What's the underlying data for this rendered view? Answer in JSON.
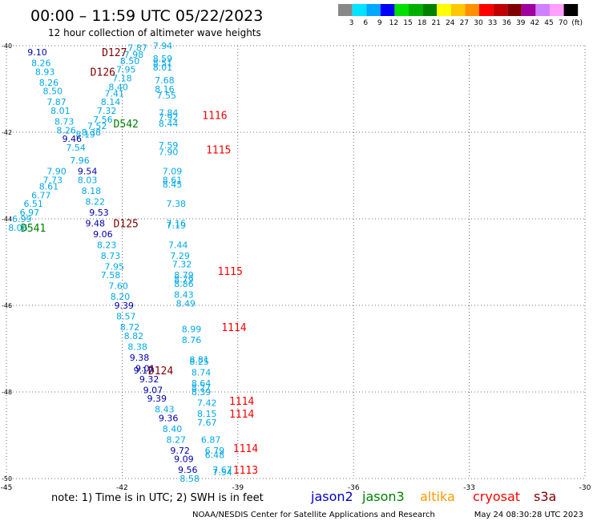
{
  "header": {
    "title": "00:00 – 11:59 UTC 05/22/2023",
    "subtitle": "12 hour collection of altimeter wave heights"
  },
  "legend_scale": {
    "colors": [
      "#888888",
      "#00e5ff",
      "#00a8ff",
      "#0000ff",
      "#00e000",
      "#00b000",
      "#008000",
      "#ffff00",
      "#ffc800",
      "#ff9000",
      "#ff0000",
      "#c00000",
      "#800000",
      "#a000a0",
      "#d080ff",
      "#ffa0ff",
      "#000000"
    ],
    "labels": [
      "3",
      "6",
      "9",
      "12",
      "15",
      "18",
      "21",
      "24",
      "27",
      "30",
      "33",
      "36",
      "39",
      "42",
      "45",
      "70",
      "(ft)"
    ]
  },
  "footer": {
    "note": "note: 1) Time is in UTC; 2) SWH is in feet",
    "credit": "NOAA/NESDIS Center for Satellite Applications and Research",
    "timestamp": "May 24 08:30:28 UTC 2023"
  },
  "satellites": [
    {
      "name": "jason2",
      "color": "#0000cc"
    },
    {
      "name": "jason3",
      "color": "#008000"
    },
    {
      "name": "altika",
      "color": "#ff9900"
    },
    {
      "name": "cryosat",
      "color": "#ff0000"
    },
    {
      "name": "s3a",
      "color": "#800000"
    }
  ],
  "chart_data": {
    "type": "scatter",
    "title": "00:00 – 11:59 UTC 05/22/2023",
    "subtitle": "12 hour collection of altimeter wave heights",
    "xlabel": "",
    "ylabel": "",
    "xlim": [
      -45,
      -30
    ],
    "ylim": [
      -50,
      -40
    ],
    "x_ticks": [
      -45,
      -42,
      -39,
      -36,
      -33,
      -30
    ],
    "y_ticks": [
      -40,
      -42,
      -44,
      -46,
      -48,
      -50
    ],
    "grid": true,
    "colors": {
      "light": "#00a8e8",
      "dark": "#0000aa"
    },
    "labels": [
      {
        "text": "D127",
        "x": -42.2,
        "y": -40.15,
        "sat": "s3a"
      },
      {
        "text": "D126",
        "x": -42.5,
        "y": -40.6,
        "sat": "s3a"
      },
      {
        "text": "D542",
        "x": -41.9,
        "y": -41.8,
        "sat": "jason3"
      },
      {
        "text": "1116",
        "x": -39.6,
        "y": -41.6,
        "sat": "cryosat"
      },
      {
        "text": "1115",
        "x": -39.5,
        "y": -42.4,
        "sat": "cryosat"
      },
      {
        "text": "D541",
        "x": -44.3,
        "y": -44.2,
        "sat": "jason3"
      },
      {
        "text": "D125",
        "x": -41.9,
        "y": -44.1,
        "sat": "s3a"
      },
      {
        "text": "1115",
        "x": -39.2,
        "y": -45.2,
        "sat": "cryosat"
      },
      {
        "text": "1114",
        "x": -39.1,
        "y": -46.5,
        "sat": "cryosat"
      },
      {
        "text": "D124",
        "x": -41.0,
        "y": -47.5,
        "sat": "s3a"
      },
      {
        "text": "1114",
        "x": -38.9,
        "y": -48.2,
        "sat": "cryosat"
      },
      {
        "text": "1114",
        "x": -38.9,
        "y": -48.5,
        "sat": "cryosat"
      },
      {
        "text": "1114",
        "x": -38.8,
        "y": -49.3,
        "sat": "cryosat"
      },
      {
        "text": "1113",
        "x": -38.8,
        "y": -49.8,
        "sat": "cryosat"
      }
    ],
    "points": [
      {
        "v": "9.10",
        "x": -44.2,
        "y": -40.15,
        "c": "dark"
      },
      {
        "v": "8.26",
        "x": -44.1,
        "y": -40.4,
        "c": "light"
      },
      {
        "v": "8.93",
        "x": -44.0,
        "y": -40.6,
        "c": "light"
      },
      {
        "v": "8.26",
        "x": -43.9,
        "y": -40.85,
        "c": "light"
      },
      {
        "v": "8.50",
        "x": -43.8,
        "y": -41.05,
        "c": "light"
      },
      {
        "v": "7.87",
        "x": -43.7,
        "y": -41.3,
        "c": "light"
      },
      {
        "v": "8.01",
        "x": -43.6,
        "y": -41.5,
        "c": "light"
      },
      {
        "v": "8.73",
        "x": -43.5,
        "y": -41.75,
        "c": "light"
      },
      {
        "v": "8.26",
        "x": -43.45,
        "y": -41.95,
        "c": "light"
      },
      {
        "v": "8.19",
        "x": -42.95,
        "y": -42.05,
        "c": "light"
      },
      {
        "v": "9.46",
        "x": -43.3,
        "y": -42.15,
        "c": "dark"
      },
      {
        "v": "7.54",
        "x": -43.2,
        "y": -42.35,
        "c": "light"
      },
      {
        "v": "7.96",
        "x": -43.1,
        "y": -42.65,
        "c": "light"
      },
      {
        "v": "7.90",
        "x": -43.7,
        "y": -42.9,
        "c": "light"
      },
      {
        "v": "9.54",
        "x": -42.9,
        "y": -42.9,
        "c": "dark"
      },
      {
        "v": "7.73",
        "x": -43.8,
        "y": -43.1,
        "c": "light"
      },
      {
        "v": "8.03",
        "x": -42.9,
        "y": -43.1,
        "c": "light"
      },
      {
        "v": "8.61",
        "x": -43.9,
        "y": -43.25,
        "c": "light"
      },
      {
        "v": "8.18",
        "x": -42.8,
        "y": -43.35,
        "c": "light"
      },
      {
        "v": "6.77",
        "x": -44.1,
        "y": -43.45,
        "c": "light"
      },
      {
        "v": "8.22",
        "x": -42.7,
        "y": -43.6,
        "c": "light"
      },
      {
        "v": "6.51",
        "x": -44.3,
        "y": -43.65,
        "c": "light"
      },
      {
        "v": "6.97",
        "x": -44.4,
        "y": -43.85,
        "c": "light"
      },
      {
        "v": "9.53",
        "x": -42.6,
        "y": -43.85,
        "c": "dark"
      },
      {
        "v": "6.99",
        "x": -44.6,
        "y": -44.0,
        "c": "light"
      },
      {
        "v": "9.48",
        "x": -42.7,
        "y": -44.1,
        "c": "dark"
      },
      {
        "v": "8.06",
        "x": -44.7,
        "y": -44.2,
        "c": "light"
      },
      {
        "v": "9.06",
        "x": -42.5,
        "y": -44.35,
        "c": "dark"
      },
      {
        "v": "8.23",
        "x": -42.4,
        "y": -44.6,
        "c": "light"
      },
      {
        "v": "8.73",
        "x": -42.3,
        "y": -44.85,
        "c": "light"
      },
      {
        "v": "7.95",
        "x": -42.2,
        "y": -45.1,
        "c": "light"
      },
      {
        "v": "7.58",
        "x": -42.3,
        "y": -45.3,
        "c": "light"
      },
      {
        "v": "7.60",
        "x": -42.1,
        "y": -45.55,
        "c": "light"
      },
      {
        "v": "8.20",
        "x": -42.05,
        "y": -45.8,
        "c": "light"
      },
      {
        "v": "9.39",
        "x": -41.95,
        "y": -46.0,
        "c": "dark"
      },
      {
        "v": "8.57",
        "x": -41.9,
        "y": -46.25,
        "c": "light"
      },
      {
        "v": "8.72",
        "x": -41.8,
        "y": -46.5,
        "c": "light"
      },
      {
        "v": "8.82",
        "x": -41.7,
        "y": -46.7,
        "c": "light"
      },
      {
        "v": "8.38",
        "x": -41.6,
        "y": -46.95,
        "c": "light"
      },
      {
        "v": "9.38",
        "x": -41.55,
        "y": -47.2,
        "c": "dark"
      },
      {
        "v": "9.01",
        "x": -41.4,
        "y": -47.45,
        "c": "dark"
      },
      {
        "v": "9.17",
        "x": -41.45,
        "y": -47.5,
        "c": "dark"
      },
      {
        "v": "9.32",
        "x": -41.3,
        "y": -47.7,
        "c": "dark"
      },
      {
        "v": "9.07",
        "x": -41.2,
        "y": -47.95,
        "c": "dark"
      },
      {
        "v": "9.39",
        "x": -41.1,
        "y": -48.15,
        "c": "dark"
      },
      {
        "v": "8.43",
        "x": -40.9,
        "y": -48.4,
        "c": "light"
      },
      {
        "v": "9.36",
        "x": -40.8,
        "y": -48.6,
        "c": "dark"
      },
      {
        "v": "8.40",
        "x": -40.7,
        "y": -48.85,
        "c": "light"
      },
      {
        "v": "8.27",
        "x": -40.6,
        "y": -49.1,
        "c": "light"
      },
      {
        "v": "9.72",
        "x": -40.5,
        "y": -49.35,
        "c": "dark"
      },
      {
        "v": "9.09",
        "x": -40.4,
        "y": -49.55,
        "c": "dark"
      },
      {
        "v": "9.56",
        "x": -40.3,
        "y": -49.8,
        "c": "dark"
      },
      {
        "v": "8.58",
        "x": -40.25,
        "y": -50.0,
        "c": "light"
      },
      {
        "v": "7.87",
        "x": -41.6,
        "y": -40.05,
        "c": "light"
      },
      {
        "v": "7.94",
        "x": -40.95,
        "y": -40.0,
        "c": "light"
      },
      {
        "v": "7.98",
        "x": -41.7,
        "y": -40.2,
        "c": "light"
      },
      {
        "v": "8.59",
        "x": -40.95,
        "y": -40.3,
        "c": "light"
      },
      {
        "v": "8.50",
        "x": -41.8,
        "y": -40.35,
        "c": "light"
      },
      {
        "v": "8.51",
        "x": -40.95,
        "y": -40.4,
        "c": "light"
      },
      {
        "v": "7.95",
        "x": -41.9,
        "y": -40.55,
        "c": "light"
      },
      {
        "v": "8.01",
        "x": -40.95,
        "y": -40.5,
        "c": "light"
      },
      {
        "v": "7.18",
        "x": -42.0,
        "y": -40.75,
        "c": "light"
      },
      {
        "v": "7.68",
        "x": -40.9,
        "y": -40.8,
        "c": "light"
      },
      {
        "v": "8.40",
        "x": -42.1,
        "y": -40.95,
        "c": "light"
      },
      {
        "v": "8.16",
        "x": -40.9,
        "y": -41.0,
        "c": "light"
      },
      {
        "v": "7.41",
        "x": -42.2,
        "y": -41.1,
        "c": "light"
      },
      {
        "v": "7.55",
        "x": -40.85,
        "y": -41.15,
        "c": "light"
      },
      {
        "v": "8.14",
        "x": -42.3,
        "y": -41.3,
        "c": "light"
      },
      {
        "v": "7.32",
        "x": -42.4,
        "y": -41.5,
        "c": "light"
      },
      {
        "v": "7.84",
        "x": -40.8,
        "y": -41.55,
        "c": "light"
      },
      {
        "v": "7.56",
        "x": -42.5,
        "y": -41.7,
        "c": "light"
      },
      {
        "v": "7.92",
        "x": -40.8,
        "y": -41.65,
        "c": "light"
      },
      {
        "v": "7.52",
        "x": -42.65,
        "y": -41.85,
        "c": "light"
      },
      {
        "v": "8.44",
        "x": -40.8,
        "y": -41.8,
        "c": "light"
      },
      {
        "v": "8.38",
        "x": -42.8,
        "y": -42.0,
        "c": "light"
      },
      {
        "v": "7.59",
        "x": -40.8,
        "y": -42.3,
        "c": "light"
      },
      {
        "v": "7.90",
        "x": -40.8,
        "y": -42.45,
        "c": "light"
      },
      {
        "v": "7.09",
        "x": -40.7,
        "y": -42.9,
        "c": "light"
      },
      {
        "v": "8.61",
        "x": -40.7,
        "y": -43.1,
        "c": "light"
      },
      {
        "v": "8.45",
        "x": -40.7,
        "y": -43.2,
        "c": "light"
      },
      {
        "v": "7.38",
        "x": -40.6,
        "y": -43.65,
        "c": "light"
      },
      {
        "v": "7.16",
        "x": -40.6,
        "y": -44.1,
        "c": "light"
      },
      {
        "v": "7.19",
        "x": -40.6,
        "y": -44.15,
        "c": "light"
      },
      {
        "v": "7.44",
        "x": -40.55,
        "y": -44.6,
        "c": "light"
      },
      {
        "v": "7.29",
        "x": -40.5,
        "y": -44.85,
        "c": "light"
      },
      {
        "v": "7.32",
        "x": -40.45,
        "y": -45.05,
        "c": "light"
      },
      {
        "v": "8.79",
        "x": -40.4,
        "y": -45.3,
        "c": "light"
      },
      {
        "v": "8.79",
        "x": -40.4,
        "y": -45.4,
        "c": "light"
      },
      {
        "v": "8.86",
        "x": -40.4,
        "y": -45.5,
        "c": "light"
      },
      {
        "v": "8.43",
        "x": -40.4,
        "y": -45.75,
        "c": "light"
      },
      {
        "v": "8.49",
        "x": -40.35,
        "y": -45.95,
        "c": "light"
      },
      {
        "v": "8.99",
        "x": -40.2,
        "y": -46.55,
        "c": "light"
      },
      {
        "v": "8.76",
        "x": -40.2,
        "y": -46.8,
        "c": "light"
      },
      {
        "v": "8.81",
        "x": -40.0,
        "y": -47.25,
        "c": "light"
      },
      {
        "v": "8.25",
        "x": -40.0,
        "y": -47.3,
        "c": "light"
      },
      {
        "v": "8.74",
        "x": -39.95,
        "y": -47.55,
        "c": "light"
      },
      {
        "v": "8.64",
        "x": -39.95,
        "y": -47.8,
        "c": "light"
      },
      {
        "v": "8.27",
        "x": -39.95,
        "y": -47.9,
        "c": "light"
      },
      {
        "v": "8.39",
        "x": -39.95,
        "y": -48.0,
        "c": "light"
      },
      {
        "v": "7.42",
        "x": -39.8,
        "y": -48.25,
        "c": "light"
      },
      {
        "v": "8.15",
        "x": -39.8,
        "y": -48.5,
        "c": "light"
      },
      {
        "v": "7.67",
        "x": -39.8,
        "y": -48.7,
        "c": "light"
      },
      {
        "v": "6.87",
        "x": -39.7,
        "y": -49.1,
        "c": "light"
      },
      {
        "v": "6.79",
        "x": -39.6,
        "y": -49.35,
        "c": "light"
      },
      {
        "v": "6.48",
        "x": -39.6,
        "y": -49.45,
        "c": "light"
      },
      {
        "v": "7.67",
        "x": -39.4,
        "y": -49.8,
        "c": "light"
      },
      {
        "v": "7.54",
        "x": -39.4,
        "y": -49.85,
        "c": "light"
      }
    ]
  }
}
